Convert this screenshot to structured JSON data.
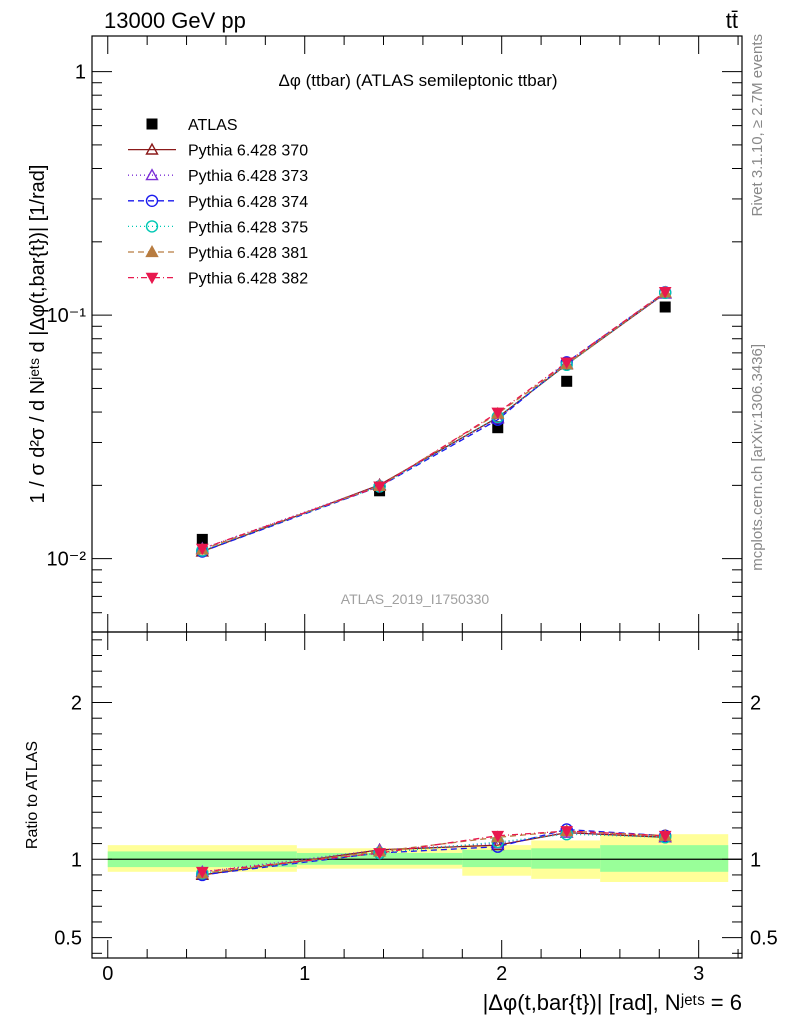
{
  "header": {
    "energy_label": "13000 GeV pp",
    "process_label": "tt̄"
  },
  "side_labels": {
    "rivet": "Rivet 3.1.10, ≥ 2.7M events",
    "source": "mcplots.cern.ch [arXiv:1306.3436]"
  },
  "colors": {
    "band_inner": "#99ff99",
    "band_outer": "#ffff99",
    "data": "#000000"
  },
  "chart_data": [
    {
      "type": "line",
      "title": "Δφ (ttbar) (ATLAS semileptonic ttbar)",
      "ylabel": "1 / σ d²σ / d Nʲᵉᵗˢ d |Δφ(t,bar{t})| [1/rad]",
      "watermark": "ATLAS_2019_I1750330",
      "yscale": "log",
      "ylim": [
        0.005,
        1.4
      ],
      "xlim": [
        -0.08,
        3.22
      ],
      "y_ticks": [
        {
          "value": 1,
          "label": "1"
        },
        {
          "value": 0.1,
          "label": "10⁻¹"
        },
        {
          "value": 0.01,
          "label": "10⁻²"
        }
      ],
      "x": [
        0.48,
        1.38,
        1.98,
        2.33,
        2.83
      ],
      "series": [
        {
          "name": "ATLAS",
          "kind": "data",
          "color": "#000000",
          "marker": "square",
          "values": [
            0.012,
            0.019,
            0.0345,
            0.0535,
            0.108
          ]
        },
        {
          "name": "Pythia 6.428 370",
          "color": "#8b1a1a",
          "dash": "",
          "marker": "triangle-up-open",
          "values": [
            0.0107,
            0.0201,
            0.038,
            0.0628,
            0.123
          ]
        },
        {
          "name": "Pythia 6.428 373",
          "color": "#7b2fd6",
          "dash": "1,3",
          "marker": "triangle-up-open",
          "values": [
            0.011,
            0.02,
            0.0376,
            0.0633,
            0.1225
          ]
        },
        {
          "name": "Pythia 6.428 374",
          "color": "#1a1aee",
          "dash": "6,4",
          "marker": "circle-open",
          "values": [
            0.0107,
            0.0198,
            0.0372,
            0.064,
            0.124
          ]
        },
        {
          "name": "Pythia 6.428 375",
          "color": "#00c8b4",
          "dash": "1,3",
          "marker": "circle-open",
          "values": [
            0.0108,
            0.0198,
            0.0382,
            0.0625,
            0.1235
          ]
        },
        {
          "name": "Pythia 6.428 381",
          "color": "#b87c40",
          "dash": "6,4",
          "marker": "triangle-up-filled",
          "values": [
            0.0109,
            0.0199,
            0.0394,
            0.063,
            0.124
          ]
        },
        {
          "name": "Pythia 6.428 382",
          "color": "#e8184e",
          "dash": "6,3,1,3",
          "marker": "triangle-down-filled",
          "values": [
            0.011,
            0.0198,
            0.0398,
            0.064,
            0.1245
          ]
        }
      ]
    },
    {
      "type": "line",
      "ylabel": "Ratio to ATLAS",
      "xlabel": "|Δφ(t,bar{t})| [rad], Nʲᵉᵗˢ = 6",
      "ylim": [
        0.37,
        2.45
      ],
      "xlim": [
        -0.08,
        3.22
      ],
      "y_ticks": [
        {
          "value": 0.5,
          "label": "0.5"
        },
        {
          "value": 1,
          "label": "1"
        },
        {
          "value": 2,
          "label": "2"
        }
      ],
      "x_ticks": [
        {
          "value": 0,
          "label": "0"
        },
        {
          "value": 1,
          "label": "1"
        },
        {
          "value": 2,
          "label": "2"
        },
        {
          "value": 3,
          "label": "3"
        }
      ],
      "bands": [
        {
          "x": [
            0.0,
            0.96
          ],
          "inner": [
            0.95,
            1.05
          ],
          "outer": [
            0.92,
            1.09
          ]
        },
        {
          "x": [
            0.96,
            1.8
          ],
          "inner": [
            0.965,
            1.04
          ],
          "outer": [
            0.94,
            1.07
          ]
        },
        {
          "x": [
            1.8,
            2.15
          ],
          "inner": [
            0.95,
            1.06
          ],
          "outer": [
            0.895,
            1.09
          ]
        },
        {
          "x": [
            2.15,
            2.5
          ],
          "inner": [
            0.94,
            1.07
          ],
          "outer": [
            0.875,
            1.12
          ]
        },
        {
          "x": [
            2.5,
            3.15
          ],
          "inner": [
            0.92,
            1.09
          ],
          "outer": [
            0.855,
            1.16
          ]
        }
      ],
      "x": [
        0.48,
        1.38,
        1.98,
        2.33,
        2.83
      ],
      "series": [
        {
          "name": "Pythia 6.428 370",
          "values": [
            0.9,
            1.06,
            1.09,
            1.17,
            1.14
          ]
        },
        {
          "name": "Pythia 6.428 373",
          "values": [
            0.92,
            1.06,
            1.1,
            1.17,
            1.14
          ]
        },
        {
          "name": "Pythia 6.428 374",
          "values": [
            0.9,
            1.04,
            1.08,
            1.19,
            1.15
          ]
        },
        {
          "name": "Pythia 6.428 375",
          "values": [
            0.91,
            1.04,
            1.11,
            1.16,
            1.14
          ]
        },
        {
          "name": "Pythia 6.428 381",
          "values": [
            0.91,
            1.05,
            1.14,
            1.18,
            1.15
          ]
        },
        {
          "name": "Pythia 6.428 382",
          "values": [
            0.92,
            1.04,
            1.15,
            1.18,
            1.15
          ]
        }
      ]
    }
  ]
}
